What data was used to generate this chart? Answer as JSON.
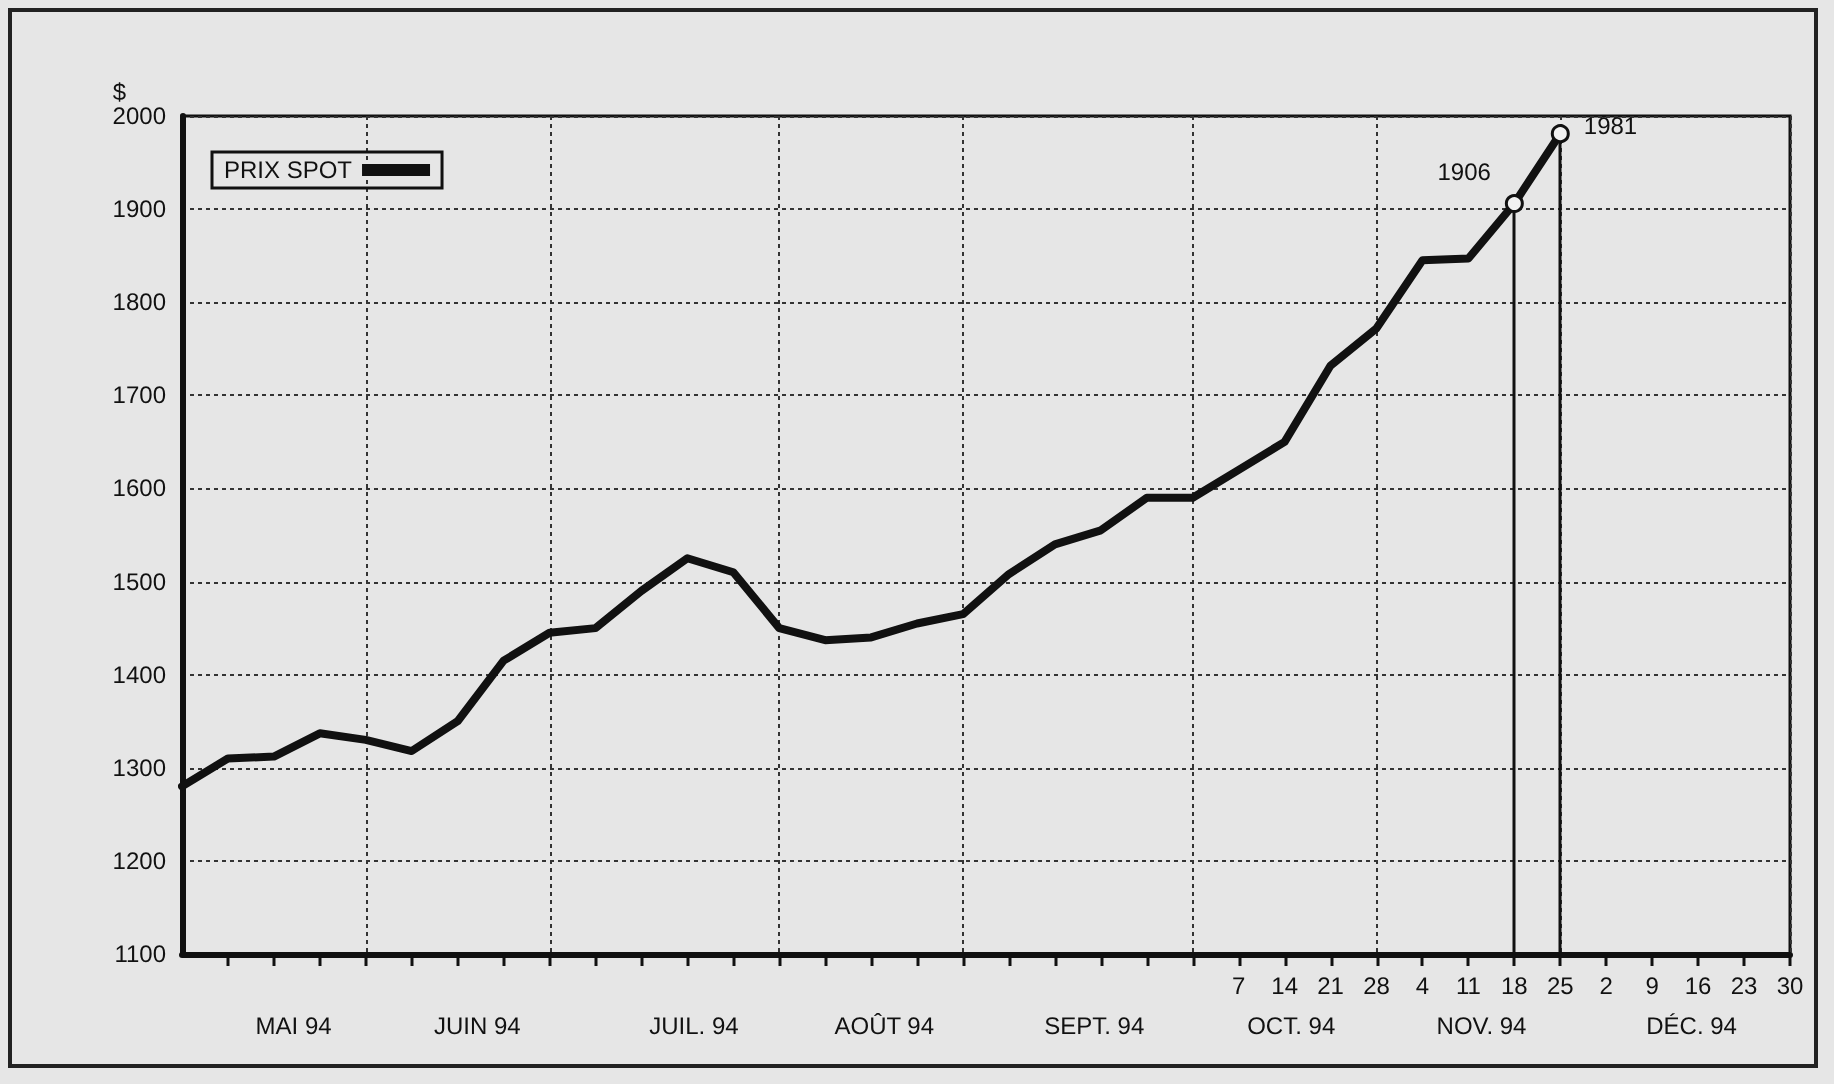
{
  "chart_data": {
    "type": "line",
    "ylabel": "$",
    "x": [
      "--04-29",
      "--05-06",
      "--05-13",
      "--05-20",
      "--05-27",
      "--06-03",
      "--06-10",
      "--06-17",
      "--06-24",
      "--07-01",
      "--07-08",
      "--07-15",
      "--07-22",
      "--07-29",
      "--08-05",
      "--08-12",
      "--08-19",
      "--08-26",
      "--09-02",
      "--09-09",
      "--09-16",
      "--09-23",
      "--09-30",
      "--10-07",
      "--10-14",
      "--10-21",
      "--10-28",
      "--11-04",
      "--11-11",
      "--11-18",
      "--11-25"
    ],
    "series": [
      {
        "name": "PRIX SPOT",
        "color": "#111111",
        "values": [
          1280,
          1310,
          1312,
          1337,
          1330,
          1318,
          1350,
          1415,
          1445,
          1450,
          1490,
          1525,
          1510,
          1450,
          1437,
          1440,
          1455,
          1465,
          1508,
          1540,
          1555,
          1590,
          1590,
          1620,
          1650,
          1732,
          1772,
          1845,
          1847,
          1906,
          1981
        ]
      }
    ],
    "xlim": [
      "--04-29",
      "--12-30"
    ],
    "xticks": [
      {
        "value": "--05-06",
        "label": null
      },
      {
        "value": "--05-13",
        "label": null
      },
      {
        "value": "--05-20",
        "label": null
      },
      {
        "value": "--05-27",
        "label": null
      },
      {
        "value": "--06-03",
        "label": null
      },
      {
        "value": "--06-10",
        "label": null
      },
      {
        "value": "--06-17",
        "label": null
      },
      {
        "value": "--06-24",
        "label": null
      },
      {
        "value": "--07-01",
        "label": null
      },
      {
        "value": "--07-08",
        "label": null
      },
      {
        "value": "--07-15",
        "label": null
      },
      {
        "value": "--07-22",
        "label": null
      },
      {
        "value": "--07-29",
        "label": null
      },
      {
        "value": "--08-05",
        "label": null
      },
      {
        "value": "--08-12",
        "label": null
      },
      {
        "value": "--08-19",
        "label": null
      },
      {
        "value": "--08-26",
        "label": null
      },
      {
        "value": "--09-02",
        "label": null
      },
      {
        "value": "--09-09",
        "label": null
      },
      {
        "value": "--09-16",
        "label": null
      },
      {
        "value": "--09-23",
        "label": null
      },
      {
        "value": "--09-30",
        "label": null
      },
      {
        "value": "--10-07",
        "label": "7"
      },
      {
        "value": "--10-14",
        "label": "14"
      },
      {
        "value": "--10-21",
        "label": "21"
      },
      {
        "value": "--10-28",
        "label": "28"
      },
      {
        "value": "--11-04",
        "label": "4"
      },
      {
        "value": "--11-11",
        "label": "11"
      },
      {
        "value": "--11-18",
        "label": "18"
      },
      {
        "value": "--11-25",
        "label": "25"
      },
      {
        "value": "--12-02",
        "label": "2"
      },
      {
        "value": "--12-09",
        "label": "9"
      },
      {
        "value": "--12-16",
        "label": "16"
      },
      {
        "value": "--12-23",
        "label": "23"
      },
      {
        "value": "--12-30",
        "label": "30"
      }
    ],
    "x2lim": [
      "1994-04-29",
      "1994-12-30"
    ],
    "x2ticks": [
      {
        "value": "1994-05-16",
        "label": "MAI 94"
      },
      {
        "value": "1994-05-27",
        "label": null
      },
      {
        "value": "1994-06-13",
        "label": "JUIN 94"
      },
      {
        "value": "1994-06-24",
        "label": null
      },
      {
        "value": "1994-07-16",
        "label": "JUIL. 94"
      },
      {
        "value": "1994-07-29",
        "label": null
      },
      {
        "value": "1994-08-14",
        "label": "AOÛT 94"
      },
      {
        "value": "1994-08-26",
        "label": null
      },
      {
        "value": "1994-09-15",
        "label": "SEPT. 94"
      },
      {
        "value": "1994-09-30",
        "label": null
      },
      {
        "value": "1994-10-15",
        "label": "OCT. 94"
      },
      {
        "value": "1994-10-28",
        "label": null
      },
      {
        "value": "1994-11-13",
        "label": "NOV. 94"
      },
      {
        "value": "1994-11-25",
        "label": null
      },
      {
        "value": "1994-12-15",
        "label": "DÉC. 94"
      },
      {
        "value": "1994-12-30",
        "label": null
      }
    ],
    "ylim": [
      1100,
      2000
    ],
    "yticks": [
      1100,
      1200,
      1300,
      1400,
      1500,
      1600,
      1700,
      1800,
      1900,
      2000
    ],
    "annotations": [
      {
        "text": "1906",
        "x": "--11-18",
        "y": 1906
      },
      {
        "text": "1981",
        "x": "--11-25",
        "y": 1981
      }
    ],
    "grid": true,
    "legend": "top left",
    "marker": "none",
    "line_style": "solid"
  }
}
